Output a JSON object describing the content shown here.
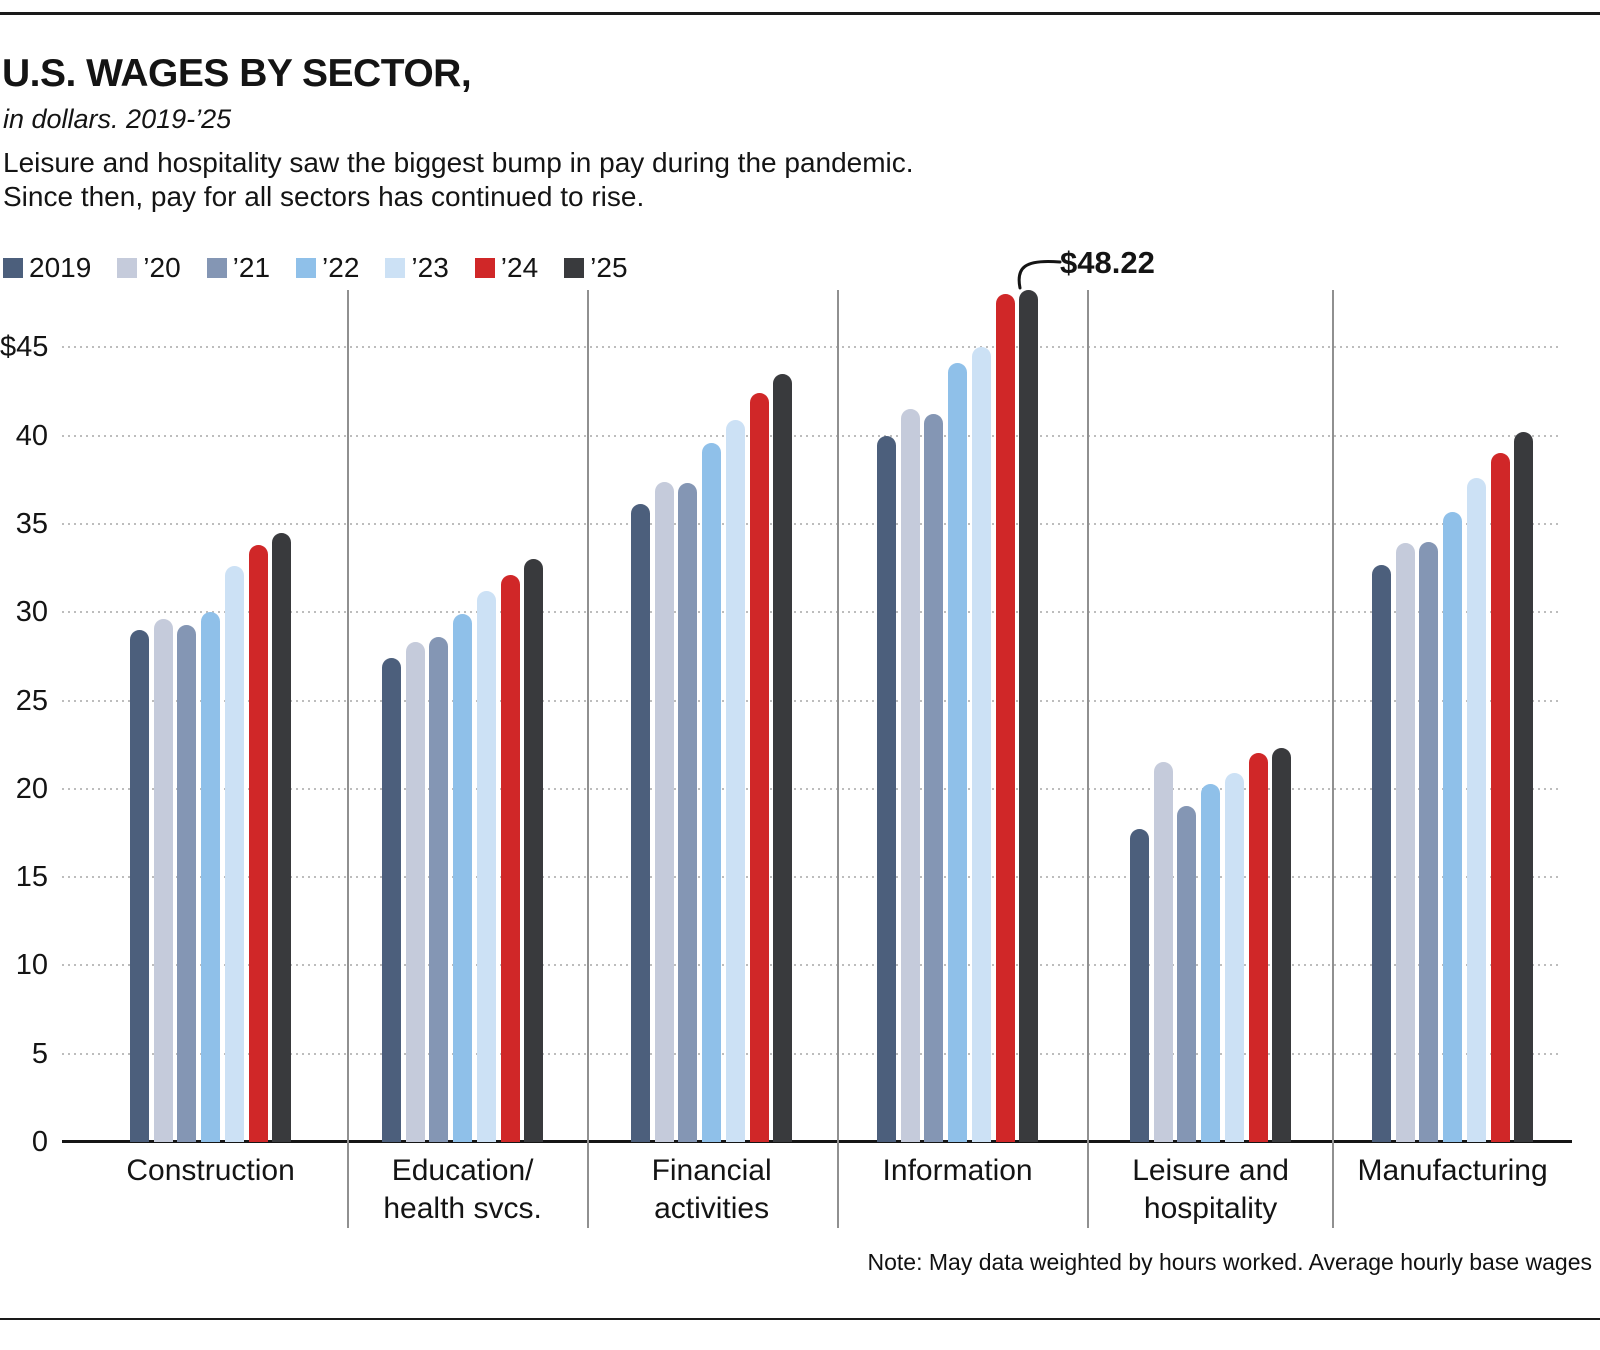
{
  "header": {
    "title": "U.S. WAGES BY SECTOR,",
    "subtitle": "in dollars. 2019-’25",
    "description_line1": "Leisure and hospitality saw the biggest bump in pay during the pandemic.",
    "description_line2": "Since then, pay for all sectors has continued to rise."
  },
  "legend": {
    "items": [
      {
        "label": "2019",
        "color": "#4c5f7c"
      },
      {
        "label": "’20",
        "color": "#c5cbdb"
      },
      {
        "label": "’21",
        "color": "#8496b4"
      },
      {
        "label": "’22",
        "color": "#8fc0e9"
      },
      {
        "label": "’23",
        "color": "#cce1f5"
      },
      {
        "label": "’24",
        "color": "#d02728"
      },
      {
        "label": "’25",
        "color": "#393a3d"
      }
    ]
  },
  "chart_data": {
    "type": "bar",
    "title": "U.S. WAGES BY SECTOR,",
    "subtitle": "in dollars. 2019-’25",
    "unit": "U.S. dollars per hour",
    "categories": [
      {
        "label": "Construction",
        "lines": [
          "Construction"
        ]
      },
      {
        "label": "Education/health svcs.",
        "lines": [
          "Education/",
          "health svcs."
        ]
      },
      {
        "label": "Financial activities",
        "lines": [
          "Financial",
          "activities"
        ]
      },
      {
        "label": "Information",
        "lines": [
          "Information"
        ]
      },
      {
        "label": "Leisure and hospitality",
        "lines": [
          "Leisure and",
          "hospitality"
        ]
      },
      {
        "label": "Manufacturing",
        "lines": [
          "Manufacturing"
        ]
      }
    ],
    "series": [
      {
        "name": "2019",
        "values": [
          29.0,
          27.4,
          36.1,
          40.0,
          17.7,
          32.7
        ]
      },
      {
        "name": "’20",
        "values": [
          29.6,
          28.3,
          37.4,
          41.5,
          21.5,
          33.9
        ]
      },
      {
        "name": "’21",
        "values": [
          29.3,
          28.6,
          37.3,
          41.2,
          19.0,
          34.0
        ]
      },
      {
        "name": "’22",
        "values": [
          30.0,
          29.9,
          39.6,
          44.1,
          20.3,
          35.7
        ]
      },
      {
        "name": "’23",
        "values": [
          32.6,
          31.2,
          40.9,
          45.0,
          20.9,
          37.6
        ]
      },
      {
        "name": "’24",
        "values": [
          33.8,
          32.1,
          42.4,
          48.0,
          22.0,
          39.0
        ]
      },
      {
        "name": "’25",
        "values": [
          34.5,
          33.0,
          43.5,
          48.22,
          22.3,
          40.2
        ]
      }
    ],
    "ylim": [
      0,
      48.5
    ],
    "yticks": [
      0,
      5,
      10,
      15,
      20,
      25,
      30,
      35,
      40,
      45
    ],
    "ytick_top_label": "$45",
    "grid": "dashed-horizontal",
    "legend_position": "top-left",
    "annotation": {
      "text": "$48.22",
      "series": "’25",
      "category": "Information",
      "value": 48.22
    }
  },
  "footer": {
    "note": "Note: May data weighted by hours worked. Average hourly base wages"
  }
}
